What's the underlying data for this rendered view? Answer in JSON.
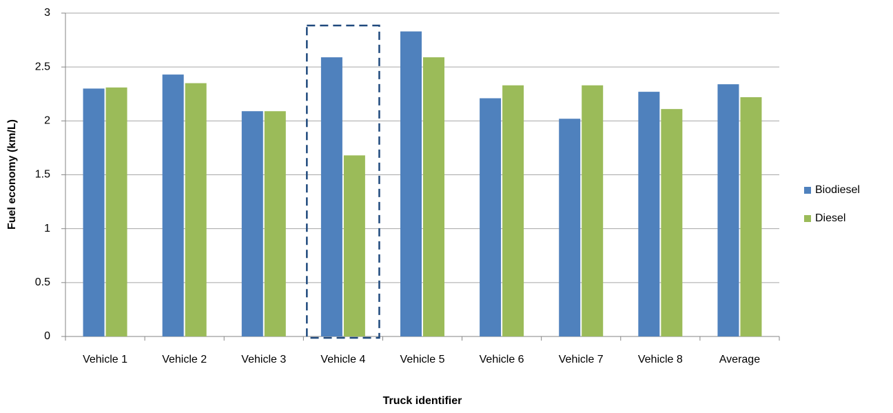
{
  "chart_data": {
    "type": "bar",
    "x_label": "Truck identifier",
    "y_label": "Fuel economy (km/L)",
    "categories": [
      "Vehicle 1",
      "Vehicle 2",
      "Vehicle 3",
      "Vehicle 4",
      "Vehicle 5",
      "Vehicle 6",
      "Vehicle 7",
      "Vehicle 8",
      "Average"
    ],
    "series": [
      {
        "name": "Biodiesel",
        "color": "#4f81bd",
        "values": [
          2.3,
          2.43,
          2.09,
          2.59,
          2.83,
          2.21,
          2.02,
          2.27,
          2.34
        ]
      },
      {
        "name": "Diesel",
        "color": "#9bbb59",
        "values": [
          2.31,
          2.35,
          2.09,
          1.68,
          2.59,
          2.33,
          2.33,
          2.11,
          2.22
        ]
      }
    ],
    "ylim": [
      0,
      3
    ],
    "yticks": [
      0,
      0.5,
      1,
      1.5,
      2,
      2.5,
      3
    ],
    "grid": true,
    "legend": "right"
  }
}
